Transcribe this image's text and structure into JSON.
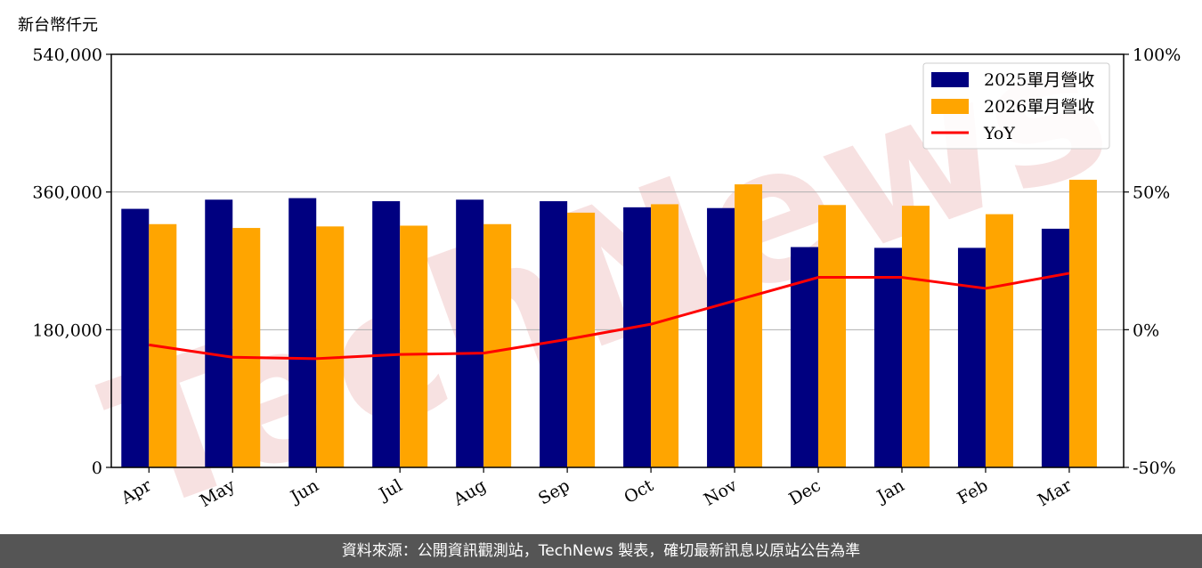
{
  "unit_label": "新台幣仟元",
  "watermark": "TechNews",
  "footer_text": "資料來源：公開資訊觀測站，TechNews 製表，確切最新訊息以原站公告為準",
  "colors": {
    "series_2025": "#000080",
    "series_2026": "#FFA500",
    "yoy": "#FF0000",
    "grid": "#b0b0b0",
    "watermark": "#F2C9C9",
    "footer_bg": "#555555"
  },
  "chart_data": {
    "type": "bar",
    "categories": [
      "Apr",
      "May",
      "Jun",
      "Jul",
      "Aug",
      "Sep",
      "Oct",
      "Nov",
      "Dec",
      "Jan",
      "Feb",
      "Mar"
    ],
    "series": [
      {
        "name": "2025單月營收",
        "values": [
          338000,
          350000,
          352000,
          348000,
          350000,
          348000,
          340000,
          339000,
          288000,
          287000,
          287000,
          312000
        ]
      },
      {
        "name": "2026單月營收",
        "values": [
          318000,
          313000,
          315000,
          316000,
          318000,
          333000,
          344000,
          370000,
          343000,
          342000,
          331000,
          376000
        ]
      }
    ],
    "line_series": {
      "name": "YoY",
      "axis": "right",
      "values": [
        -5.5,
        -10,
        -10.5,
        -9,
        -8.5,
        -3.5,
        2,
        10.5,
        19,
        19,
        15,
        20.5
      ]
    },
    "ylim": [
      0,
      540000
    ],
    "yticks": [
      "0",
      "180,000",
      "360,000",
      "540,000"
    ],
    "y2lim": [
      -50,
      100
    ],
    "y2ticks": [
      "-50%",
      "0%",
      "50%",
      "100%"
    ],
    "xlabel": "",
    "ylabel": "",
    "grid": "horizontal",
    "legend_position": "top-right"
  }
}
